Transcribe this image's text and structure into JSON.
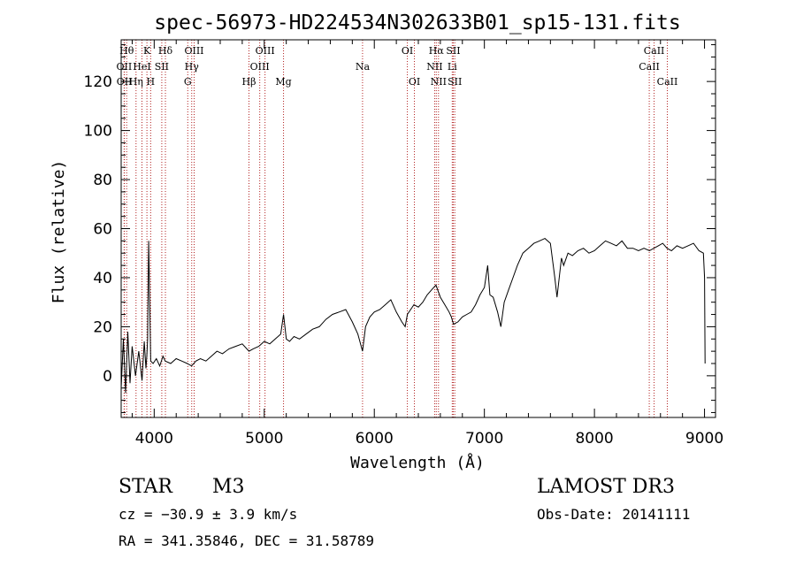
{
  "chart_data": {
    "type": "line",
    "title": "spec-56973-HD224534N302633B01_sp15-131.fits",
    "xlabel": "Wavelength (Å)",
    "ylabel": "Flux (relative)",
    "xlim": [
      3700,
      9100
    ],
    "ylim": [
      -17,
      137
    ],
    "xticks": [
      4000,
      5000,
      6000,
      7000,
      8000,
      9000
    ],
    "yticks": [
      0,
      20,
      40,
      60,
      80,
      100,
      120
    ],
    "series": [
      {
        "name": "spectrum",
        "x": [
          3700,
          3720,
          3740,
          3760,
          3780,
          3800,
          3830,
          3860,
          3890,
          3910,
          3925,
          3933,
          3940,
          3950,
          3968,
          3990,
          4020,
          4050,
          4080,
          4100,
          4150,
          4200,
          4250,
          4300,
          4340,
          4380,
          4420,
          4470,
          4520,
          4570,
          4620,
          4680,
          4740,
          4800,
          4861,
          4900,
          4950,
          5000,
          5050,
          5100,
          5150,
          5175,
          5200,
          5230,
          5270,
          5320,
          5380,
          5440,
          5500,
          5560,
          5620,
          5680,
          5740,
          5800,
          5850,
          5893,
          5920,
          5960,
          6000,
          6050,
          6100,
          6150,
          6200,
          6250,
          6280,
          6300,
          6330,
          6360,
          6400,
          6440,
          6480,
          6520,
          6560,
          6600,
          6640,
          6680,
          6700,
          6720,
          6760,
          6800,
          6840,
          6880,
          6920,
          6960,
          7000,
          7030,
          7050,
          7080,
          7120,
          7150,
          7180,
          7220,
          7260,
          7300,
          7350,
          7400,
          7450,
          7500,
          7550,
          7600,
          7640,
          7660,
          7680,
          7700,
          7720,
          7760,
          7800,
          7850,
          7900,
          7950,
          8000,
          8050,
          8100,
          8150,
          8200,
          8250,
          8300,
          8350,
          8400,
          8450,
          8500,
          8540,
          8580,
          8620,
          8660,
          8700,
          8750,
          8800,
          8850,
          8900,
          8950,
          8990,
          9000,
          9005
        ],
        "values": [
          -5,
          15,
          -7,
          18,
          -3,
          12,
          0,
          10,
          -2,
          14,
          3,
          8,
          15,
          55,
          6,
          5,
          7,
          4,
          8,
          6,
          5,
          7,
          6,
          5,
          4,
          6,
          7,
          6,
          8,
          10,
          9,
          11,
          12,
          13,
          10,
          11,
          12,
          14,
          13,
          15,
          17,
          25,
          15,
          14,
          16,
          15,
          17,
          19,
          20,
          23,
          25,
          26,
          27,
          22,
          17,
          10,
          20,
          24,
          26,
          27,
          29,
          31,
          26,
          22,
          20,
          25,
          27,
          29,
          28,
          30,
          33,
          35,
          37,
          32,
          29,
          26,
          24,
          21,
          22,
          24,
          25,
          26,
          29,
          33,
          36,
          45,
          33,
          32,
          26,
          20,
          30,
          35,
          40,
          45,
          50,
          52,
          54,
          55,
          56,
          54,
          40,
          32,
          40,
          48,
          45,
          50,
          49,
          51,
          52,
          50,
          51,
          53,
          55,
          54,
          53,
          55,
          52,
          52,
          51,
          52,
          51,
          52,
          53,
          54,
          52,
          51,
          53,
          52,
          53,
          54,
          51,
          50,
          40,
          5
        ]
      }
    ],
    "lines": [
      {
        "label": "OII",
        "x": 3727,
        "row": 1
      },
      {
        "label": "OII",
        "x": 3729,
        "row": 2
      },
      {
        "label": "Hθ",
        "x": 3750,
        "row": 0
      },
      {
        "label": "Hη",
        "x": 3835,
        "row": 2
      },
      {
        "label": "HeI",
        "x": 3889,
        "row": 1
      },
      {
        "label": "K",
        "x": 3934,
        "row": 0
      },
      {
        "label": "H",
        "x": 3968,
        "row": 2
      },
      {
        "label": "SII",
        "x": 4069,
        "row": 1
      },
      {
        "label": "Hδ",
        "x": 4102,
        "row": 0
      },
      {
        "label": "G",
        "x": 4305,
        "row": 2
      },
      {
        "label": "Hγ",
        "x": 4341,
        "row": 1
      },
      {
        "label": "OIII",
        "x": 4363,
        "row": 0
      },
      {
        "label": "Hβ",
        "x": 4861,
        "row": 2
      },
      {
        "label": "OIII",
        "x": 4959,
        "row": 1
      },
      {
        "label": "OIII",
        "x": 5007,
        "row": 0
      },
      {
        "label": "Mg",
        "x": 5175,
        "row": 2
      },
      {
        "label": "Na",
        "x": 5893,
        "row": 1
      },
      {
        "label": "OI",
        "x": 6300,
        "row": 0
      },
      {
        "label": "OI",
        "x": 6364,
        "row": 2
      },
      {
        "label": "NII",
        "x": 6548,
        "row": 1
      },
      {
        "label": "Hα",
        "x": 6563,
        "row": 0
      },
      {
        "label": "NII",
        "x": 6583,
        "row": 2
      },
      {
        "label": "Li",
        "x": 6708,
        "row": 1
      },
      {
        "label": "SII",
        "x": 6717,
        "row": 0
      },
      {
        "label": "SII",
        "x": 6731,
        "row": 2
      },
      {
        "label": "CaII",
        "x": 8498,
        "row": 1
      },
      {
        "label": "CaII",
        "x": 8542,
        "row": 0
      },
      {
        "label": "CaII",
        "x": 8662,
        "row": 2
      }
    ],
    "line_color": "#b22222",
    "grid": false
  },
  "info": {
    "class": "STAR",
    "subclass": "M3",
    "survey": "LAMOST DR3",
    "cz": "cz = −30.9 ± 3.9 km/s",
    "obs_date": "Obs-Date: 20141111",
    "coords": "RA = 341.35846, DEC =  31.58789"
  }
}
